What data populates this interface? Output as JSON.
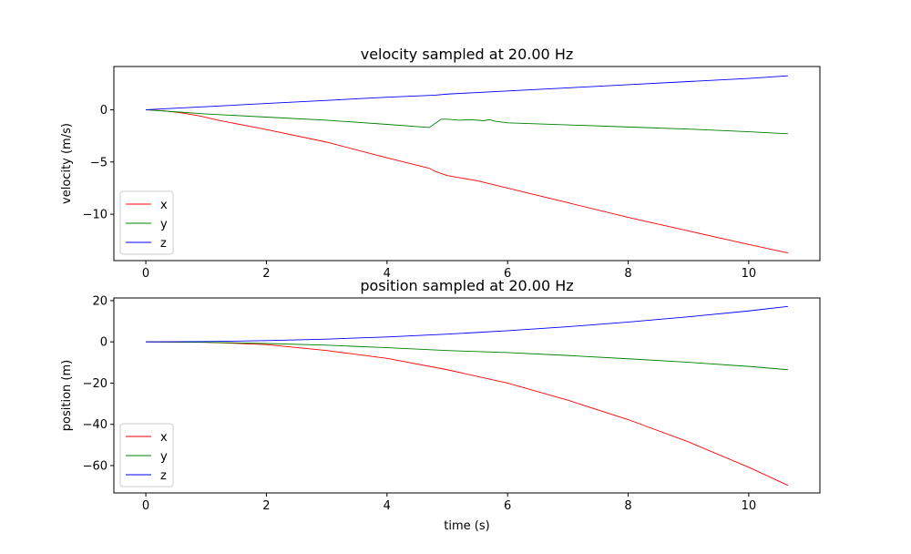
{
  "colors": {
    "x": "#ff0000",
    "y": "#008000",
    "z": "#0000ff"
  },
  "chart_data": [
    {
      "type": "line",
      "title": "velocity sampled at 20.00 Hz",
      "xlabel": "",
      "ylabel": "velocity (m/s)",
      "xlim": [
        -0.53,
        11.18
      ],
      "ylim": [
        -14.44,
        4.14
      ],
      "xticks": [
        0,
        2,
        4,
        6,
        8,
        10
      ],
      "xtick_labels": [
        "0",
        "2",
        "4",
        "6",
        "8",
        "10"
      ],
      "yticks": [
        -10,
        -5,
        0
      ],
      "ytick_labels": [
        "−10",
        "−5",
        "0"
      ],
      "legend_position": "lower left",
      "series": [
        {
          "name": "x",
          "color": "#ff0000",
          "x": [
            0,
            0.3,
            0.6,
            0.9,
            1.2,
            2,
            3,
            4,
            4.7,
            4.8,
            4.9,
            5,
            5.5,
            6,
            7,
            8,
            9,
            10,
            10.65
          ],
          "y": [
            0,
            -0.1,
            -0.3,
            -0.6,
            -1.0,
            -1.9,
            -3.1,
            -4.6,
            -5.6,
            -5.9,
            -6.1,
            -6.3,
            -6.8,
            -7.5,
            -8.9,
            -10.3,
            -11.6,
            -12.9,
            -13.7
          ]
        },
        {
          "name": "y",
          "color": "#008000",
          "x": [
            0,
            0.5,
            1,
            2,
            3,
            4,
            4.7,
            4.8,
            4.9,
            5.0,
            5.2,
            5.4,
            5.6,
            5.7,
            5.8,
            6,
            7,
            8,
            9,
            10,
            10.65
          ],
          "y": [
            0,
            -0.2,
            -0.4,
            -0.7,
            -1.0,
            -1.4,
            -1.7,
            -1.3,
            -0.9,
            -0.9,
            -1.0,
            -0.95,
            -1.05,
            -0.95,
            -1.1,
            -1.25,
            -1.45,
            -1.65,
            -1.85,
            -2.1,
            -2.3
          ]
        },
        {
          "name": "z",
          "color": "#0000ff",
          "x": [
            0,
            1,
            2,
            3,
            4,
            4.8,
            5,
            5.5,
            6,
            7,
            8,
            9,
            10,
            10.65
          ],
          "y": [
            0,
            0.3,
            0.6,
            0.9,
            1.2,
            1.4,
            1.5,
            1.65,
            1.8,
            2.1,
            2.4,
            2.7,
            3.0,
            3.25
          ]
        }
      ]
    },
    {
      "type": "line",
      "title": "position sampled at 20.00 Hz",
      "xlabel": "time (s)",
      "ylabel": "position (m)",
      "xlim": [
        -0.53,
        11.18
      ],
      "ylim": [
        -73.27,
        21.3
      ],
      "xticks": [
        0,
        2,
        4,
        6,
        8,
        10
      ],
      "xtick_labels": [
        "0",
        "2",
        "4",
        "6",
        "8",
        "10"
      ],
      "yticks": [
        -60,
        -40,
        -20,
        0,
        20
      ],
      "ytick_labels": [
        "−60",
        "−40",
        "−20",
        "0",
        "20"
      ],
      "legend_position": "lower left",
      "series": [
        {
          "name": "x",
          "color": "#ff0000",
          "x": [
            0,
            1,
            2,
            3,
            4,
            5,
            6,
            7,
            8,
            9,
            10,
            10.65
          ],
          "y": [
            0,
            -0.2,
            -1.3,
            -4.2,
            -8.0,
            -13.5,
            -20.0,
            -28.3,
            -37.7,
            -48.5,
            -60.8,
            -69.6
          ]
        },
        {
          "name": "y",
          "color": "#008000",
          "x": [
            0,
            1,
            2,
            3,
            4,
            5,
            6,
            7,
            8,
            9,
            10,
            10.65
          ],
          "y": [
            0,
            -0.2,
            -0.8,
            -1.6,
            -2.8,
            -4.2,
            -5.2,
            -6.6,
            -8.2,
            -9.9,
            -11.9,
            -13.5
          ]
        },
        {
          "name": "z",
          "color": "#0000ff",
          "x": [
            0,
            1,
            2,
            3,
            4,
            5,
            6,
            7,
            8,
            9,
            10,
            10.65
          ],
          "y": [
            0,
            0.15,
            0.6,
            1.35,
            2.4,
            3.75,
            5.4,
            7.35,
            9.6,
            12.15,
            15.0,
            17.2
          ]
        }
      ]
    }
  ]
}
